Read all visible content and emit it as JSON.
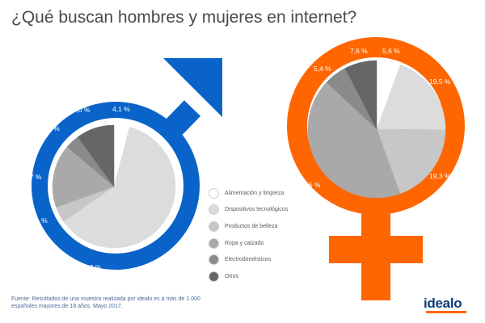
{
  "title": "¿Qué buscan hombres y mujeres en internet?",
  "colors": {
    "men": "#0a63c9",
    "women": "#ff6600",
    "categories": [
      "#ffffff",
      "#dcdcdc",
      "#c7c7c7",
      "#a9a9a9",
      "#8a8a8a",
      "#666666"
    ]
  },
  "legend": [
    {
      "label": "Alimentación y limpieza",
      "color": "#ffffff"
    },
    {
      "label": "Dispositivos tecnológicos",
      "color": "#dcdcdc"
    },
    {
      "label": "Productos de belleza",
      "color": "#c7c7c7"
    },
    {
      "label": "Ropa y calzado",
      "color": "#a9a9a9"
    },
    {
      "label": "Electrodomésticos",
      "color": "#8a8a8a"
    },
    {
      "label": "Otros",
      "color": "#666666"
    }
  ],
  "chart_data": [
    {
      "type": "pie",
      "categories": [
        "Alimentación y limpieza",
        "Dispositivos tecnológicos",
        "Productos de belleza",
        "Ropa y calzado",
        "Electrodomésticos",
        "Otros"
      ],
      "values": [
        4.1,
        61.3,
        4.1,
        16.7,
        3.8,
        10.0
      ],
      "labels": [
        "4,1 %",
        "61,3 %",
        "4,1 %",
        "16,7 %",
        "3,8 %",
        "10,0 %"
      ],
      "symbol": "male"
    },
    {
      "type": "pie",
      "categories": [
        "Alimentación y limpieza",
        "Dispositivos tecnológicos",
        "Productos de belleza",
        "Ropa y calzado",
        "Electrodomésticos",
        "Otros"
      ],
      "values": [
        5.6,
        19.5,
        19.3,
        42.5,
        5.4,
        7.6
      ],
      "labels": [
        "5,6 %",
        "19,5 %",
        "19,3 %",
        "42,5 %",
        "5,4 %",
        "7,6 %"
      ],
      "symbol": "female"
    }
  ],
  "source": "Fuente: Resultados de una muestra realizada por idealo.es a más de 1.000 españoles mayores de 18 años. Mayo 2017.",
  "logo": "idealo"
}
